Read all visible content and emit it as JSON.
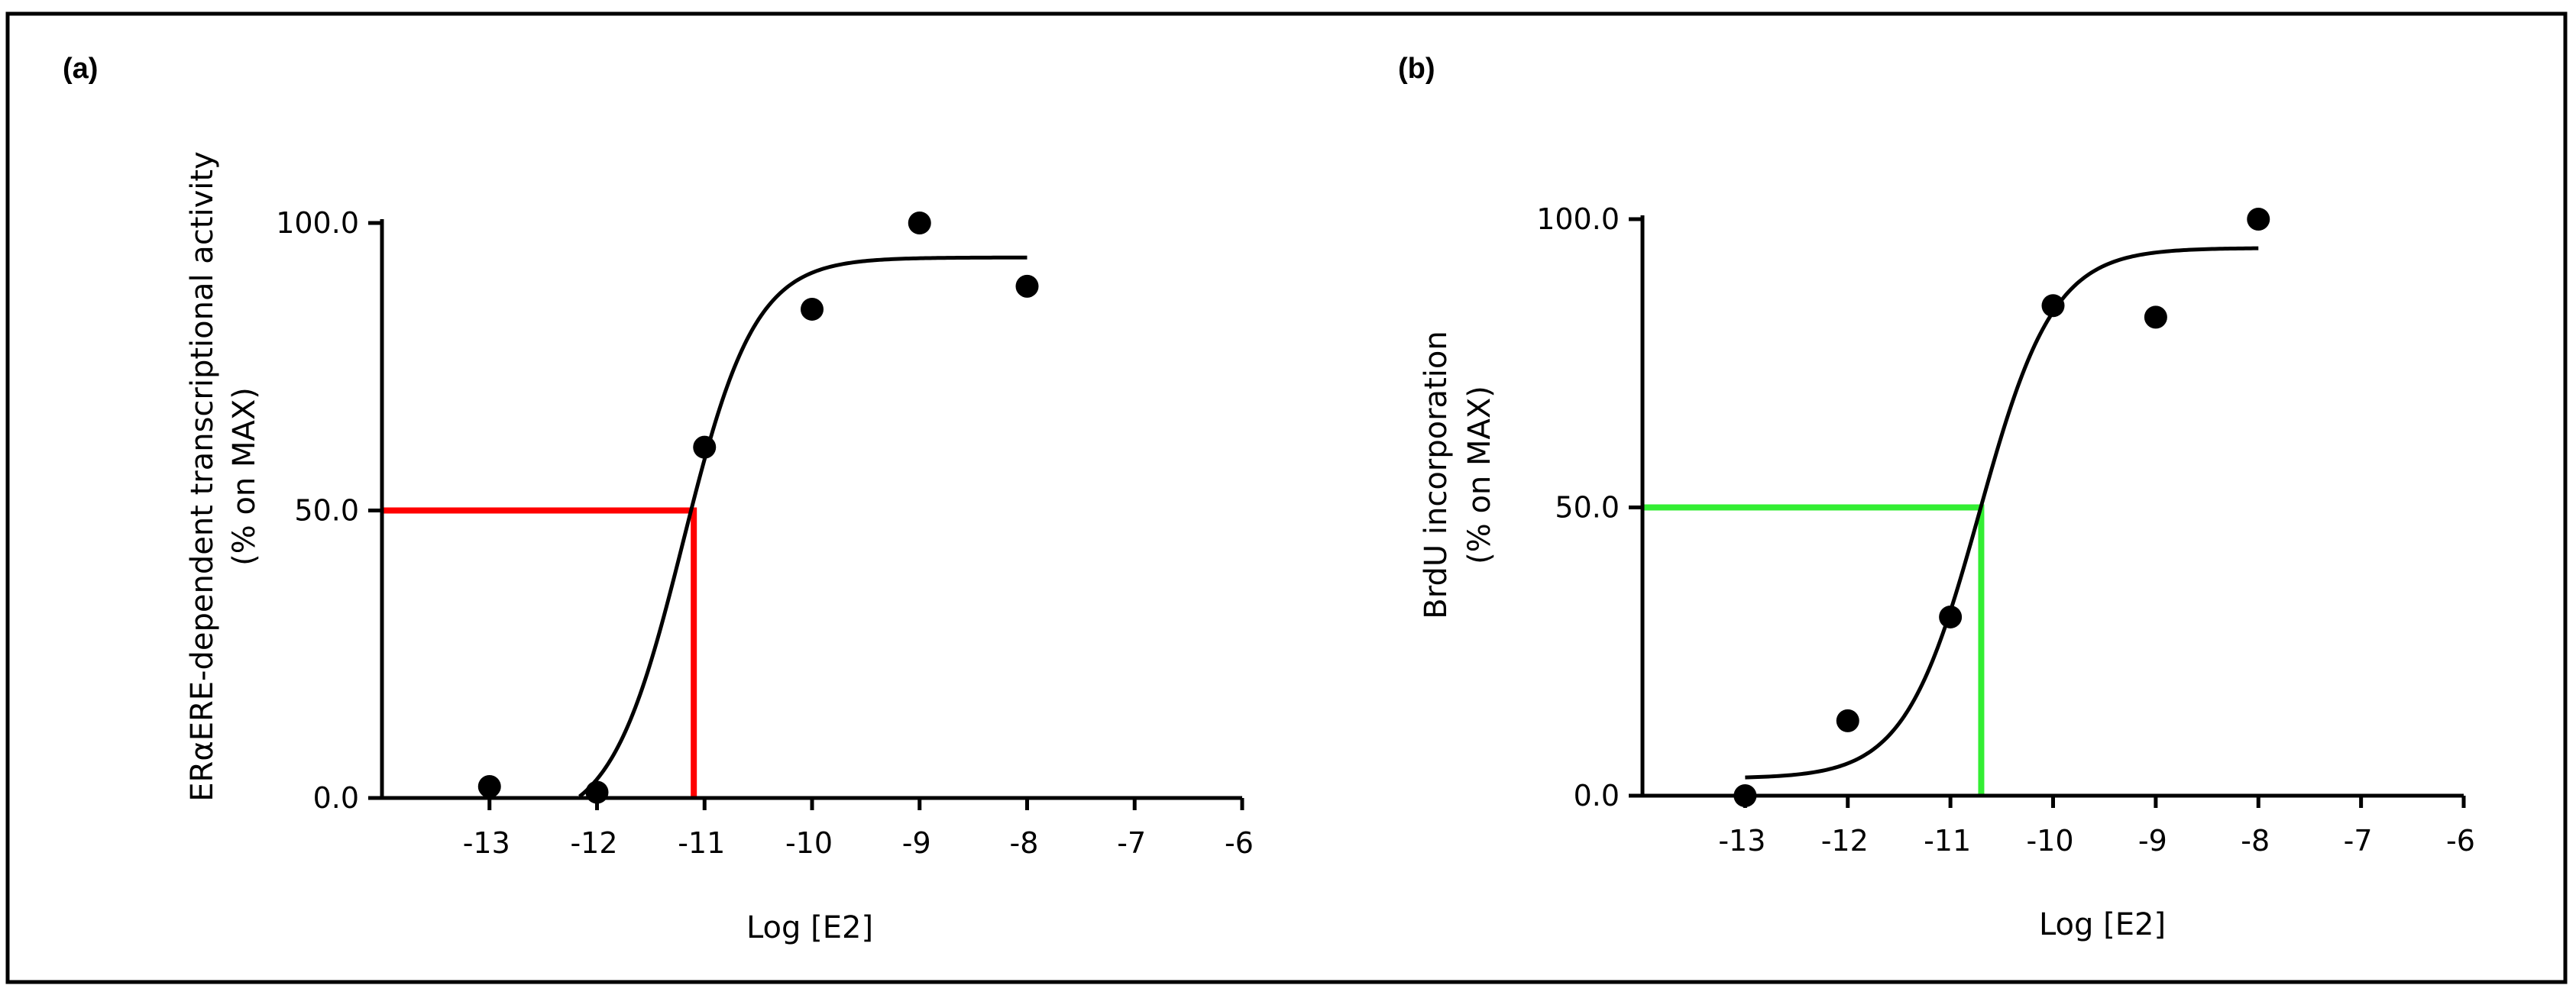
{
  "chart_data": [
    {
      "type": "scatter",
      "panel_label": "(a)",
      "xlabel": "Log [E2]",
      "ylabel_line1": "ERαERE-dependent transcriptional activity",
      "ylabel_line2": "(% on MAX)",
      "xlim": [
        -14,
        -6
      ],
      "ylim": [
        0,
        100
      ],
      "x_ticks": [
        -13,
        -12,
        -11,
        -10,
        -9,
        -8,
        -7,
        -6
      ],
      "x_tick_labels": [
        "-13",
        "-12",
        "-11",
        "-10",
        "-9",
        "-8",
        "-7",
        "-6"
      ],
      "y_ticks": [
        0,
        50,
        100
      ],
      "y_tick_labels": [
        "0.0",
        "50.0",
        "100.0"
      ],
      "points": {
        "x": [
          -13,
          -12,
          -11,
          -10,
          -9,
          -8
        ],
        "y": [
          2,
          1,
          61,
          85,
          100,
          89
        ]
      },
      "fit": {
        "model": "sigmoid",
        "bottom": -5,
        "top": 94,
        "log_ec50": -11.2,
        "hill": 1.3,
        "x_range": [
          -12.5,
          -8
        ]
      },
      "ec50_guide": {
        "x": -11.1,
        "y": 50,
        "color": "#ff0000"
      }
    },
    {
      "type": "scatter",
      "panel_label": "(b)",
      "xlabel": "Log [E2]",
      "ylabel_line1": "BrdU incorporation",
      "ylabel_line2": "(% on MAX)",
      "xlim": [
        -14,
        -6
      ],
      "ylim": [
        0,
        100
      ],
      "x_ticks": [
        -13,
        -12,
        -11,
        -10,
        -9,
        -8,
        -7,
        -6
      ],
      "x_tick_labels": [
        "-13",
        "-12",
        "-11",
        "-10",
        "-9",
        "-8",
        "-7",
        "-6"
      ],
      "y_ticks": [
        0,
        50,
        100
      ],
      "y_tick_labels": [
        "0.0",
        "50.0",
        "100.0"
      ],
      "points": {
        "x": [
          -13,
          -12,
          -11,
          -10,
          -9,
          -8
        ],
        "y": [
          0,
          13,
          31,
          85,
          83,
          100
        ]
      },
      "fit": {
        "model": "sigmoid",
        "bottom": 3,
        "top": 95,
        "log_ec50": -10.72,
        "hill": 1.2,
        "x_range": [
          -13,
          -8
        ]
      },
      "ec50_guide": {
        "x": -10.7,
        "y": 50,
        "color": "#33ee33"
      }
    }
  ]
}
